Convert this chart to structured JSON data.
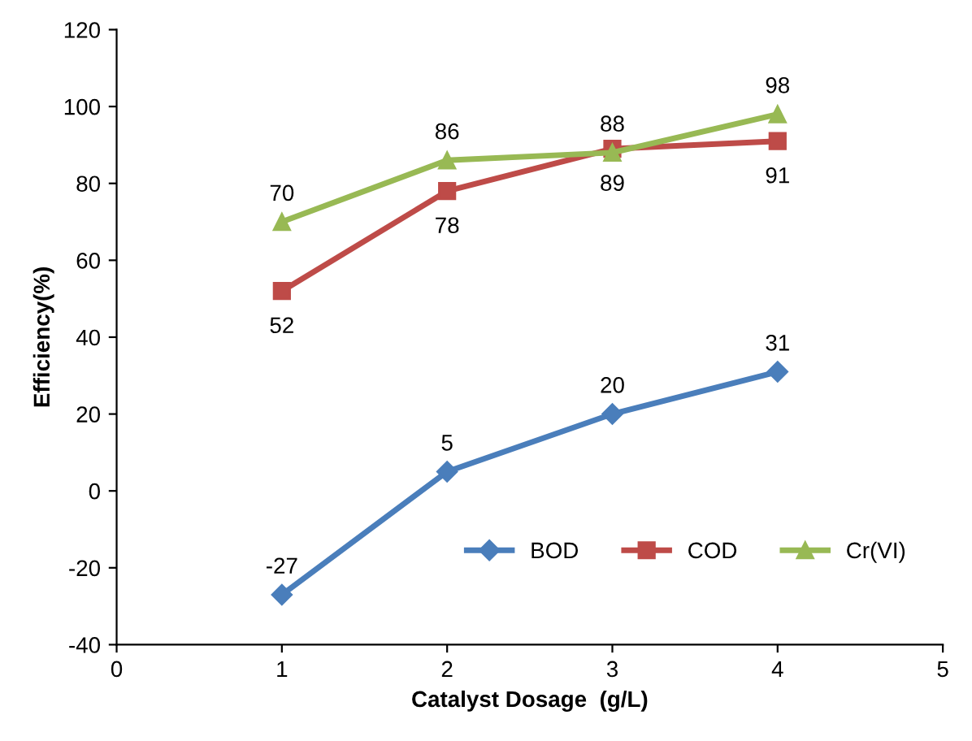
{
  "chart_data": {
    "type": "line",
    "xlabel": "Catalyst Dosage  (g/L)",
    "ylabel": "Efficiency(%)",
    "x": [
      1,
      2,
      3,
      4
    ],
    "series": [
      {
        "name": "BOD",
        "color": "#4a7ebb",
        "marker": "diamond",
        "values": [
          -27,
          5,
          20,
          31
        ]
      },
      {
        "name": "COD",
        "color": "#be4b48",
        "marker": "square",
        "values": [
          52,
          78,
          89,
          91
        ]
      },
      {
        "name": "Cr(VI)",
        "color": "#98b954",
        "marker": "triangle",
        "values": [
          70,
          86,
          88,
          98
        ]
      }
    ],
    "xlim": [
      0,
      5
    ],
    "xticks": [
      0,
      1,
      2,
      3,
      4,
      5
    ],
    "ylim": [
      -40,
      120
    ],
    "yticks": [
      -40,
      -20,
      0,
      20,
      40,
      60,
      80,
      100,
      120
    ],
    "grid": false,
    "legend": "lower right",
    "data_labels": true,
    "line_style": "solid"
  }
}
